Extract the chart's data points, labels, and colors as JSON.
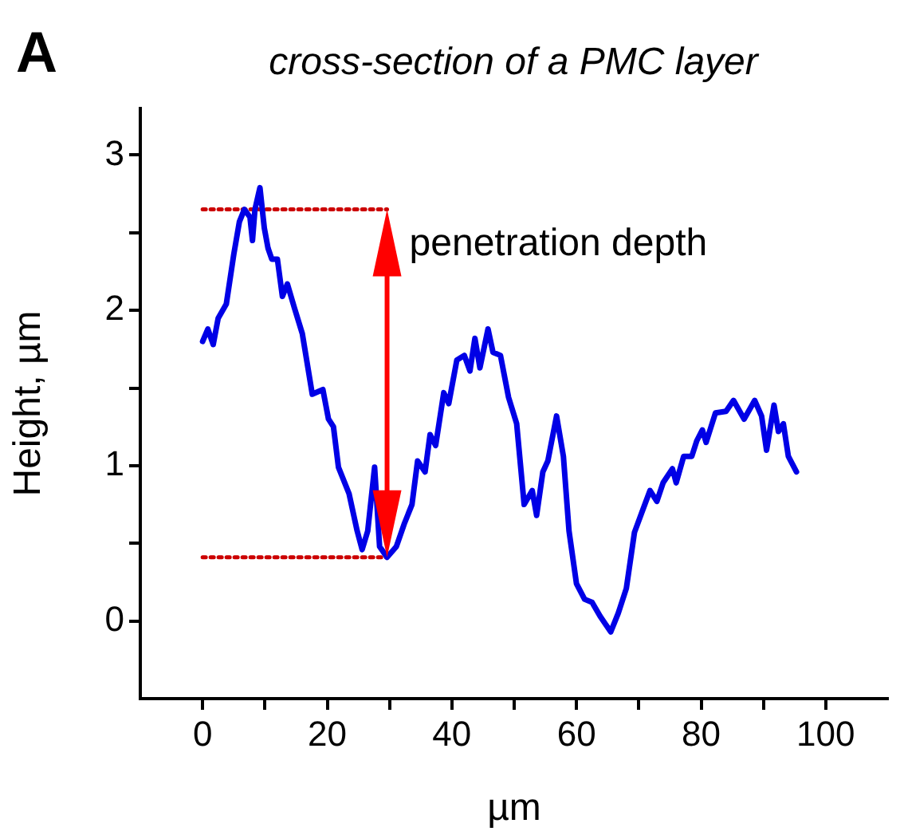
{
  "chart_data": {
    "type": "line",
    "title": "cross-section of a PMC layer",
    "xlabel": "µm",
    "ylabel": "Height, µm",
    "annotations": [
      "A",
      "penetration depth"
    ],
    "xlim": [
      -10,
      110
    ],
    "xticks": [
      0,
      {
        "value": 10,
        "label": null
      },
      20,
      {
        "value": 30,
        "label": null
      },
      40,
      {
        "value": 50,
        "label": null
      },
      60,
      {
        "value": 70,
        "label": null
      },
      80,
      {
        "value": 90,
        "label": null
      },
      100
    ],
    "ylim": [
      -0.5,
      3.3
    ],
    "yticks": [
      0,
      {
        "value": 0.5,
        "label": null
      },
      1,
      {
        "value": 1.5,
        "label": null
      },
      2,
      {
        "value": 2.5,
        "label": null
      },
      3
    ],
    "grid": false,
    "legend": false,
    "marker": "none",
    "series": [
      {
        "color": "#0000e6",
        "line_style": "solid",
        "x": [
          0,
          0.84,
          1.7,
          2.5,
          3.8,
          5.0,
          5.9,
          6.7,
          7.6,
          8.0,
          8.4,
          9.2,
          9.9,
          10.5,
          11.1,
          12.0,
          12.8,
          13.6,
          14.7,
          16.0,
          17.6,
          19.3,
          20.2,
          21.0,
          21.8,
          23.5,
          24.8,
          25.6,
          26.5,
          27.6,
          28.4,
          29.6,
          31.1,
          32.4,
          33.6,
          34.5,
          35.7,
          36.5,
          37.4,
          38.7,
          39.5,
          40.8,
          42.0,
          42.9,
          43.7,
          44.5,
          45.8,
          46.6,
          47.8,
          49.1,
          50.4,
          51.6,
          52.9,
          53.6,
          54.6,
          55.4,
          56.8,
          57.9,
          58.8,
          60.0,
          61.3,
          62.5,
          63.8,
          65.5,
          66.7,
          68.0,
          69.3,
          70.5,
          71.8,
          72.9,
          73.9,
          75.4,
          76.0,
          77.2,
          78.5,
          79.3,
          80.2,
          80.8,
          82.3,
          84.0,
          85.2,
          86.9,
          88.6,
          89.7,
          90.5,
          91.7,
          92.4,
          93.2,
          94.0,
          95.3
        ],
        "values": [
          1.8,
          1.88,
          1.78,
          1.95,
          2.04,
          2.36,
          2.57,
          2.65,
          2.6,
          2.45,
          2.65,
          2.79,
          2.53,
          2.4,
          2.33,
          2.33,
          2.09,
          2.17,
          2.02,
          1.85,
          1.46,
          1.49,
          1.3,
          1.25,
          0.99,
          0.82,
          0.58,
          0.46,
          0.58,
          0.99,
          0.48,
          0.41,
          0.48,
          0.63,
          0.75,
          1.03,
          0.96,
          1.2,
          1.13,
          1.47,
          1.4,
          1.68,
          1.71,
          1.61,
          1.82,
          1.63,
          1.88,
          1.73,
          1.71,
          1.44,
          1.27,
          0.75,
          0.84,
          0.68,
          0.96,
          1.03,
          1.32,
          1.06,
          0.58,
          0.24,
          0.14,
          0.12,
          0.03,
          -0.07,
          0.05,
          0.21,
          0.57,
          0.7,
          0.84,
          0.77,
          0.89,
          0.98,
          0.89,
          1.06,
          1.06,
          1.16,
          1.23,
          1.15,
          1.34,
          1.35,
          1.42,
          1.3,
          1.42,
          1.32,
          1.1,
          1.39,
          1.22,
          1.27,
          1.06,
          0.96
        ]
      },
      {
        "color": "#cc0000",
        "line_style": "dotted",
        "x": [
          0,
          29.6
        ],
        "values": [
          2.65,
          2.65
        ]
      },
      {
        "color": "#cc0000",
        "line_style": "dotted",
        "x": [
          0,
          29.6
        ],
        "values": [
          0.41,
          0.41
        ]
      }
    ]
  }
}
